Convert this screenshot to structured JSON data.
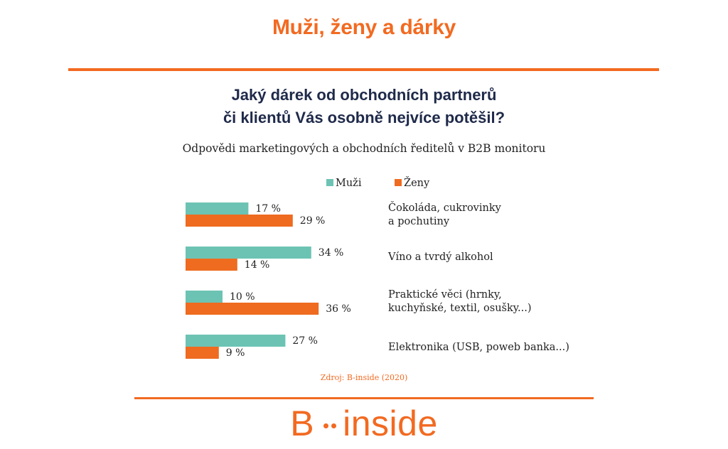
{
  "page": {
    "title": "Muži, ženy a dárky",
    "question_line1": "Jaký dárek od obchodních partnerů",
    "question_line2": "či klientů Vás osobně nejvíce potěšil?",
    "subtitle": "Odpovědi marketingových a obchodních ředitelů v B2B monitoru",
    "source": "Zdroj: B-inside (2020)",
    "logo_left": "B",
    "logo_right": "inside"
  },
  "colors": {
    "accent": "#f26a21",
    "muzi": "#6cc3b3",
    "zeny": "#ee6b20",
    "title_text": "#1f2a4a"
  },
  "chart_data": {
    "type": "bar",
    "orientation": "horizontal",
    "categories": [
      "Čokoláda, cukrovinky\na pochutiny",
      "Víno a tvrdý alkohol",
      "Praktické věci (hrnky,\nkuchyňské, textil, osušky...)",
      "Elektronika (USB, poweb banka...)"
    ],
    "series": [
      {
        "name": "Muži",
        "values": [
          17,
          34,
          10,
          27
        ],
        "labels": [
          "17 %",
          "34 %",
          "10 %",
          "27 %"
        ]
      },
      {
        "name": "Ženy",
        "values": [
          29,
          14,
          36,
          9
        ],
        "labels": [
          "29 %",
          "14 %",
          "36 %",
          "9 %"
        ]
      }
    ],
    "legend_position": "top",
    "unit": "%",
    "grid": false
  }
}
